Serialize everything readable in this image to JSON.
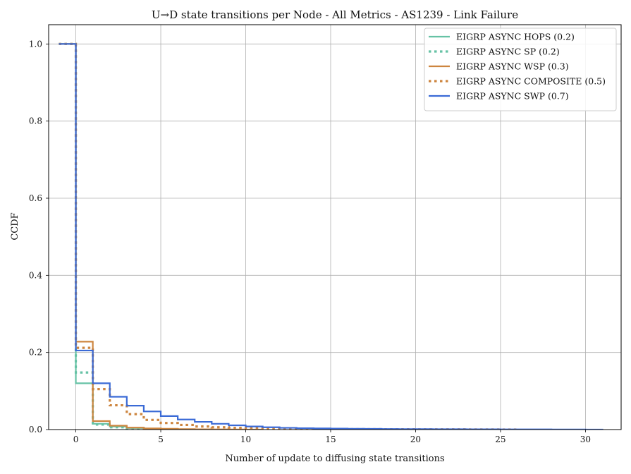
{
  "chart_data": {
    "type": "line",
    "step": "post",
    "title": "U→D state transitions per Node - All Metrics - AS1239 - Link Failure",
    "xlabel": "Number of update to diffusing state transitions",
    "ylabel": "CCDF",
    "xlim": [
      -1.6,
      32.1
    ],
    "ylim": [
      0,
      1.05
    ],
    "xticks": [
      0,
      5,
      10,
      15,
      20,
      25,
      30
    ],
    "yticks": [
      0.0,
      0.2,
      0.4,
      0.6,
      0.8,
      1.0
    ],
    "xtick_labels": [
      "0",
      "5",
      "10",
      "15",
      "20",
      "25",
      "30"
    ],
    "ytick_labels": [
      "0.0",
      "0.2",
      "0.4",
      "0.6",
      "0.8",
      "1.0"
    ],
    "grid": true,
    "legend_position": "top-right",
    "series": [
      {
        "name": "EIGRP ASYNC HOPS (0.2)",
        "color": "#66c2a5",
        "dash": "solid",
        "x": [
          -1,
          0,
          1,
          2,
          3,
          4,
          5,
          6,
          7,
          8
        ],
        "y": [
          1.0,
          0.12,
          0.015,
          0.008,
          0.004,
          0.002,
          0.001,
          0.0005,
          0.0002,
          0.0
        ]
      },
      {
        "name": "EIGRP ASYNC SP (0.2)",
        "color": "#66c2a5",
        "dash": "dotted",
        "x": [
          -1,
          0,
          1,
          2,
          3,
          4,
          5,
          6
        ],
        "y": [
          1.0,
          0.148,
          0.013,
          0.006,
          0.003,
          0.0015,
          0.0005,
          0.0
        ]
      },
      {
        "name": "EIGRP ASYNC WSP (0.3)",
        "color": "#cd853f",
        "dash": "solid",
        "x": [
          -1,
          0,
          1,
          2,
          3,
          4,
          5,
          6,
          7,
          8,
          9,
          10,
          11
        ],
        "y": [
          1.0,
          0.228,
          0.022,
          0.01,
          0.005,
          0.003,
          0.002,
          0.0012,
          0.0008,
          0.0005,
          0.0003,
          0.0001,
          0.0
        ]
      },
      {
        "name": "EIGRP ASYNC COMPOSITE (0.5)",
        "color": "#cd853f",
        "dash": "dotted",
        "x": [
          -1,
          0,
          1,
          2,
          3,
          4,
          5,
          6,
          7,
          8,
          9,
          10,
          11,
          12,
          13,
          14,
          15,
          16,
          17,
          18,
          19,
          20,
          21,
          22,
          23,
          24,
          25,
          26
        ],
        "y": [
          1.0,
          0.212,
          0.105,
          0.063,
          0.04,
          0.025,
          0.017,
          0.012,
          0.008,
          0.006,
          0.0045,
          0.0035,
          0.0028,
          0.0022,
          0.0018,
          0.0015,
          0.0012,
          0.001,
          0.0009,
          0.0008,
          0.0007,
          0.0006,
          0.0005,
          0.0004,
          0.0003,
          0.0002,
          0.0001,
          0.0
        ]
      },
      {
        "name": "EIGRP ASYNC SWP (0.7)",
        "color": "#3a6ad6",
        "dash": "solid",
        "x": [
          -1,
          0,
          1,
          2,
          3,
          4,
          5,
          6,
          7,
          8,
          9,
          10,
          11,
          12,
          13,
          14,
          15,
          16,
          17,
          18,
          19,
          20,
          21,
          22,
          23,
          24,
          25,
          26,
          27,
          28,
          29,
          30,
          31
        ],
        "y": [
          1.0,
          0.205,
          0.12,
          0.085,
          0.062,
          0.047,
          0.035,
          0.026,
          0.02,
          0.015,
          0.011,
          0.008,
          0.006,
          0.0045,
          0.0035,
          0.003,
          0.0025,
          0.002,
          0.0018,
          0.0015,
          0.0013,
          0.0011,
          0.001,
          0.0009,
          0.0008,
          0.0007,
          0.0006,
          0.0005,
          0.0004,
          0.0003,
          0.0002,
          0.0001,
          0.0
        ]
      }
    ]
  }
}
